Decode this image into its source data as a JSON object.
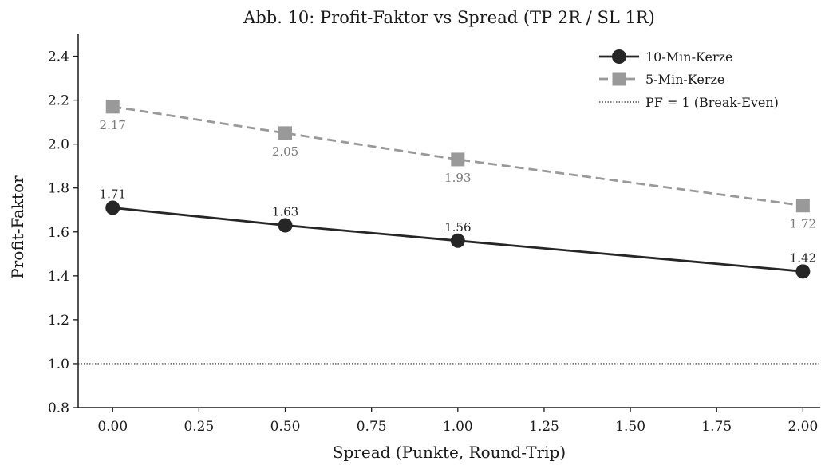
{
  "chart_data": {
    "type": "line",
    "title": "Abb. 10: Profit-Faktor vs Spread (TP 2R / SL 1R)",
    "xlabel": "Spread (Punkte, Round-Trip)",
    "ylabel": "Profit-Faktor",
    "xlim": [
      -0.1,
      2.05
    ],
    "ylim": [
      0.8,
      2.5
    ],
    "xticks": [
      "0.00",
      "0.25",
      "0.50",
      "0.75",
      "1.00",
      "1.25",
      "1.50",
      "1.75",
      "2.00"
    ],
    "yticks": [
      "0.8",
      "1.0",
      "1.2",
      "1.4",
      "1.6",
      "1.8",
      "2.0",
      "2.2",
      "2.4"
    ],
    "grid": false,
    "legend_position": "top-right",
    "series": [
      {
        "name": "10-Min-Kerze",
        "x": [
          0.0,
          0.5,
          1.0,
          2.0
        ],
        "values": [
          1.71,
          1.63,
          1.56,
          1.42
        ],
        "labels": [
          "1.71",
          "1.63",
          "1.56",
          "1.42"
        ],
        "color": "#262626",
        "label_color": "#262626",
        "marker": "circle",
        "line_style": "solid",
        "label_position": "above"
      },
      {
        "name": "5-Min-Kerze",
        "x": [
          0.0,
          0.5,
          1.0,
          2.0
        ],
        "values": [
          2.17,
          2.05,
          1.93,
          1.72
        ],
        "labels": [
          "2.17",
          "2.05",
          "1.93",
          "1.72"
        ],
        "color": "#999999",
        "label_color": "#7a7a7a",
        "marker": "square",
        "line_style": "dashed",
        "label_position": "below"
      }
    ],
    "reference_line": {
      "name": "PF = 1 (Break-Even)",
      "y": 1.0,
      "color": "#333333",
      "line_style": "dotted"
    }
  }
}
